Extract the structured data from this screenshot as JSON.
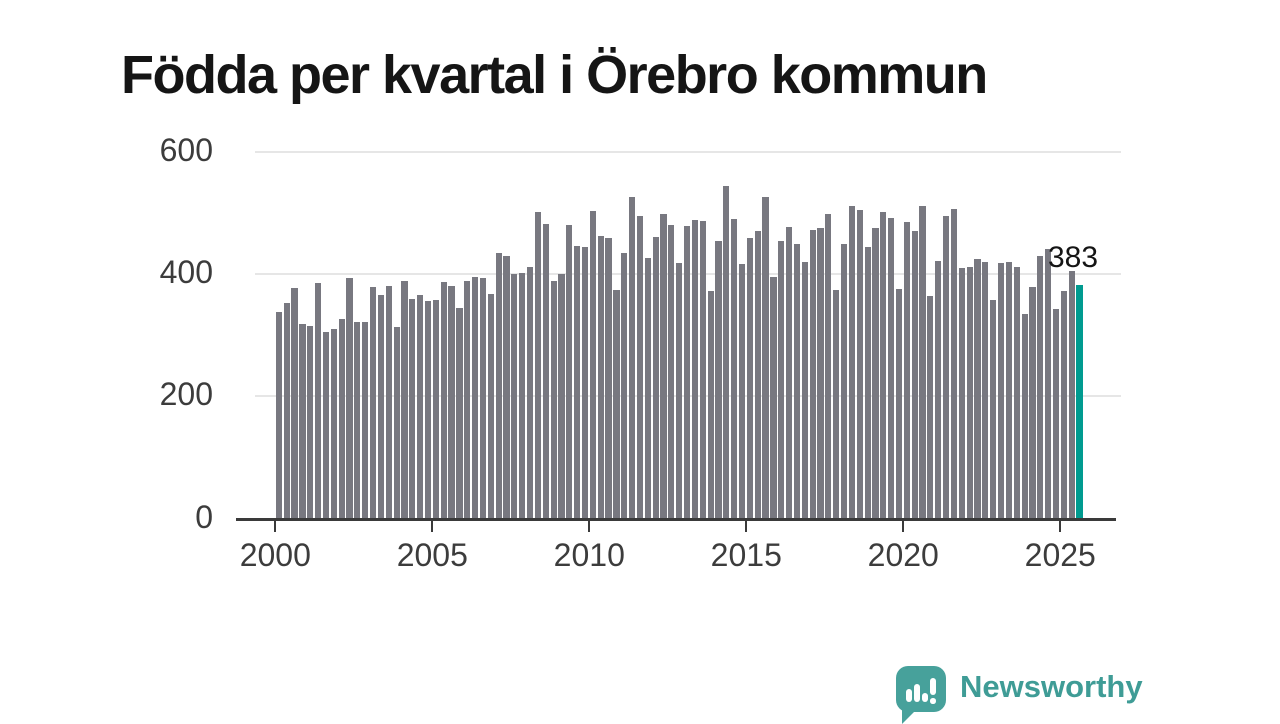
{
  "title": "Födda per kvartal i Örebro kommun",
  "annotation": {
    "label": "383"
  },
  "branding": {
    "name": "Newsworthy",
    "icon": "newsworthy-speech-bubble-chart-icon"
  },
  "colors": {
    "bar": "#787880",
    "highlight": "#009b90",
    "grid": "#e6e6e6",
    "axis": "#3a3a3a",
    "tick_text": "#3c3c3c",
    "title_text": "#151515",
    "brand": "#3f9c96"
  },
  "chart_data": {
    "type": "bar",
    "title": "Födda per kvartal i Örebro kommun",
    "frequency": "quarterly",
    "x_start": "2000-Q1",
    "x_end": "2025-Q3",
    "values": [
      338,
      353,
      378,
      319,
      315,
      385,
      306,
      311,
      327,
      394,
      322,
      322,
      379,
      366,
      381,
      314,
      388,
      359,
      366,
      356,
      357,
      387,
      380,
      345,
      389,
      396,
      393,
      368,
      435,
      430,
      401,
      402,
      412,
      502,
      482,
      389,
      400,
      480,
      446,
      445,
      503,
      462,
      460,
      374,
      434,
      527,
      495,
      426,
      461,
      499,
      481,
      418,
      479,
      489,
      487,
      373,
      455,
      545,
      490,
      417,
      459,
      470,
      526,
      395,
      454,
      478,
      450,
      420,
      472,
      475,
      498,
      374,
      449,
      511,
      505,
      445,
      475,
      501,
      492,
      375,
      486,
      470,
      511,
      364,
      421,
      495,
      507,
      410,
      411,
      425,
      420,
      357,
      418,
      420,
      412,
      335,
      379,
      430,
      441,
      343,
      373,
      405,
      383
    ],
    "highlight_index": 102,
    "highlight_value_label": "383",
    "x_tick_labels": [
      "2000",
      "2005",
      "2010",
      "2015",
      "2020",
      "2025"
    ],
    "x_tick_years": [
      2000,
      2005,
      2010,
      2015,
      2020,
      2025
    ],
    "y_tick_labels": [
      "0",
      "200",
      "400",
      "600"
    ],
    "y_tick_values": [
      0,
      200,
      400,
      600
    ],
    "ylim": [
      0,
      600
    ],
    "grid": "horizontal",
    "legend": "none"
  }
}
